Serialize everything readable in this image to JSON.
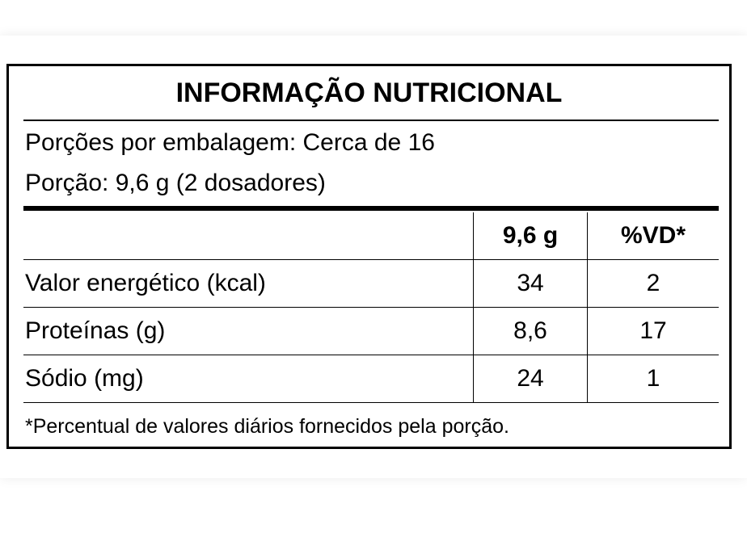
{
  "label": {
    "title": "INFORMAÇÃO NUTRICIONAL",
    "servings_per_package": "Porções por embalagem: Cerca de 16",
    "serving_size": "Porção: 9,6 g (2 dosadores)",
    "table": {
      "header": [
        "9,6 g",
        "%VD*"
      ],
      "rows": [
        [
          "Valor energético (kcal)",
          "34",
          "2"
        ],
        [
          "Proteínas (g)",
          "8,6",
          "17"
        ],
        [
          "Sódio (mg)",
          "24",
          "1"
        ]
      ]
    },
    "footnote": "*Percentual de valores diários fornecidos pela porção."
  }
}
